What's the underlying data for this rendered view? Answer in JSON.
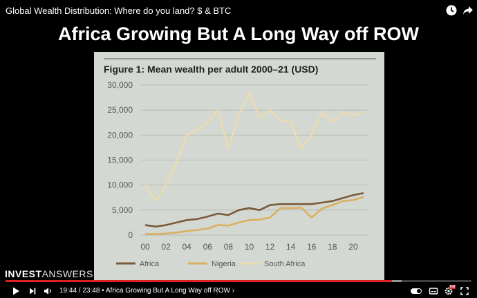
{
  "video": {
    "title": "Global Wealth Distribution: Where do you land? $ & BTC",
    "current_time": "19:44",
    "duration": "23:48",
    "chapter": "Africa Growing But A Long Way off ROW",
    "time_display": "19:44 / 23:48 • Africa Growing But A Long Way off ROW ›",
    "progress": 0.829,
    "buffered": 0.85,
    "autoplay_on": true,
    "quality_badge": "HD"
  },
  "slide": {
    "title": "Africa Growing But A Long Way off ROW"
  },
  "watermark": {
    "part1": "INVEST",
    "part2": "ANSWERS"
  },
  "icons": {
    "clock": "clock-icon",
    "share": "share-icon",
    "play": "play-icon",
    "next": "next-icon",
    "volume": "volume-icon",
    "autoplay": "autoplay-toggle",
    "subtitles": "subtitles-icon",
    "settings": "settings-icon",
    "fullscreen": "fullscreen-icon"
  },
  "colors": {
    "africa": "#7a5a3a",
    "nigeria": "#d9b060",
    "south_africa": "#eadcb0",
    "progress": "#e02020"
  },
  "chart_data": {
    "type": "line",
    "title": "Figure 1: Mean wealth per adult 2000–21 (USD)",
    "xlabel": "",
    "ylabel": "",
    "x": [
      2000,
      2001,
      2002,
      2003,
      2004,
      2005,
      2006,
      2007,
      2008,
      2009,
      2010,
      2011,
      2012,
      2013,
      2014,
      2015,
      2016,
      2017,
      2018,
      2019,
      2020,
      2021
    ],
    "xticks": [
      "00",
      "02",
      "04",
      "06",
      "08",
      "10",
      "12",
      "14",
      "16",
      "18",
      "20"
    ],
    "ylim": [
      0,
      30000
    ],
    "yticks": [
      "0",
      "5,000",
      "10,000",
      "15,000",
      "20,000",
      "25,000",
      "30,000"
    ],
    "grid": true,
    "legend_position": "bottom",
    "series": [
      {
        "name": "Africa",
        "values": [
          2000,
          1700,
          2000,
          2500,
          3000,
          3200,
          3700,
          4300,
          4000,
          5000,
          5400,
          5000,
          6000,
          6200,
          6200,
          6200,
          6200,
          6500,
          6800,
          7400,
          8000,
          8400
        ]
      },
      {
        "name": "Nigeria",
        "values": [
          200,
          200,
          300,
          500,
          800,
          1000,
          1300,
          2000,
          1900,
          2500,
          3000,
          3100,
          3500,
          5400,
          5400,
          5500,
          3500,
          5300,
          6000,
          6800,
          7000,
          7600
        ]
      },
      {
        "name": "South Africa",
        "values": [
          10000,
          6800,
          10000,
          14500,
          20000,
          21000,
          22500,
          25000,
          17200,
          24000,
          28500,
          23500,
          25000,
          23000,
          22500,
          17300,
          20000,
          24500,
          22700,
          24500,
          24000,
          24500
        ]
      }
    ]
  }
}
